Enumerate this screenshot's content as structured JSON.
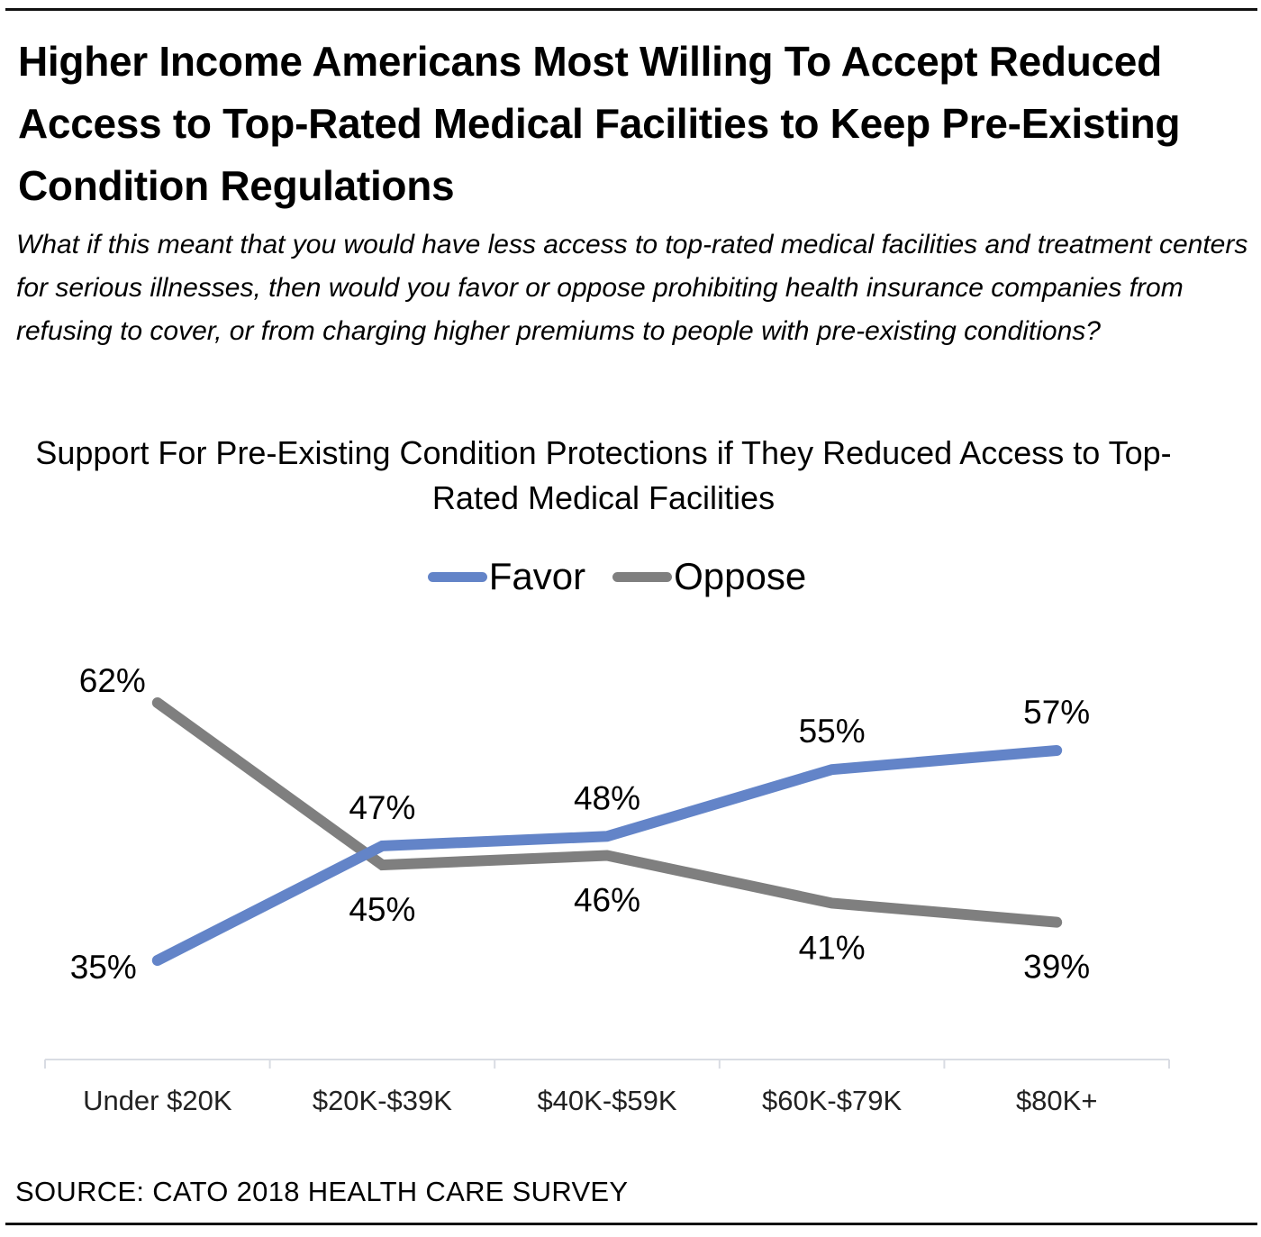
{
  "headline": "Higher Income Americans Most Willing To Accept Reduced Access to Top-Rated Medical Facilities to Keep Pre-Existing Condition Regulations",
  "question": "What if this meant that you would have less access to top-rated medical facilities and treatment centers for serious illnesses, then would you favor or oppose prohibiting health insurance companies from refusing to cover, or from charging higher premiums to people with pre-existing conditions?",
  "source": "SOURCE: CATO 2018 HEALTH CARE SURVEY",
  "colors": {
    "favor": "#6384c8",
    "oppose": "#7f7f7f",
    "axis": "#d9dce3"
  },
  "chart_data": {
    "type": "line",
    "title": "Support For Pre-Existing  Condition Protections if They Reduced Access to Top-Rated Medical Facilities",
    "xlabel": "",
    "ylabel": "",
    "categories": [
      "Under $20K",
      "$20K-$39K",
      "$40K-$59K",
      "$60K-$79K",
      "$80K+"
    ],
    "series": [
      {
        "name": "Favor",
        "values": [
          35,
          47,
          48,
          55,
          57
        ],
        "labels": [
          "35%",
          "47%",
          "48%",
          "55%",
          "57%"
        ]
      },
      {
        "name": "Oppose",
        "values": [
          62,
          45,
          46,
          41,
          39
        ],
        "labels": [
          "62%",
          "45%",
          "46%",
          "41%",
          "39%"
        ]
      }
    ],
    "ylim": [
      30,
      65
    ],
    "grid": false,
    "legend": "top-center",
    "value_axis_visible": false
  }
}
